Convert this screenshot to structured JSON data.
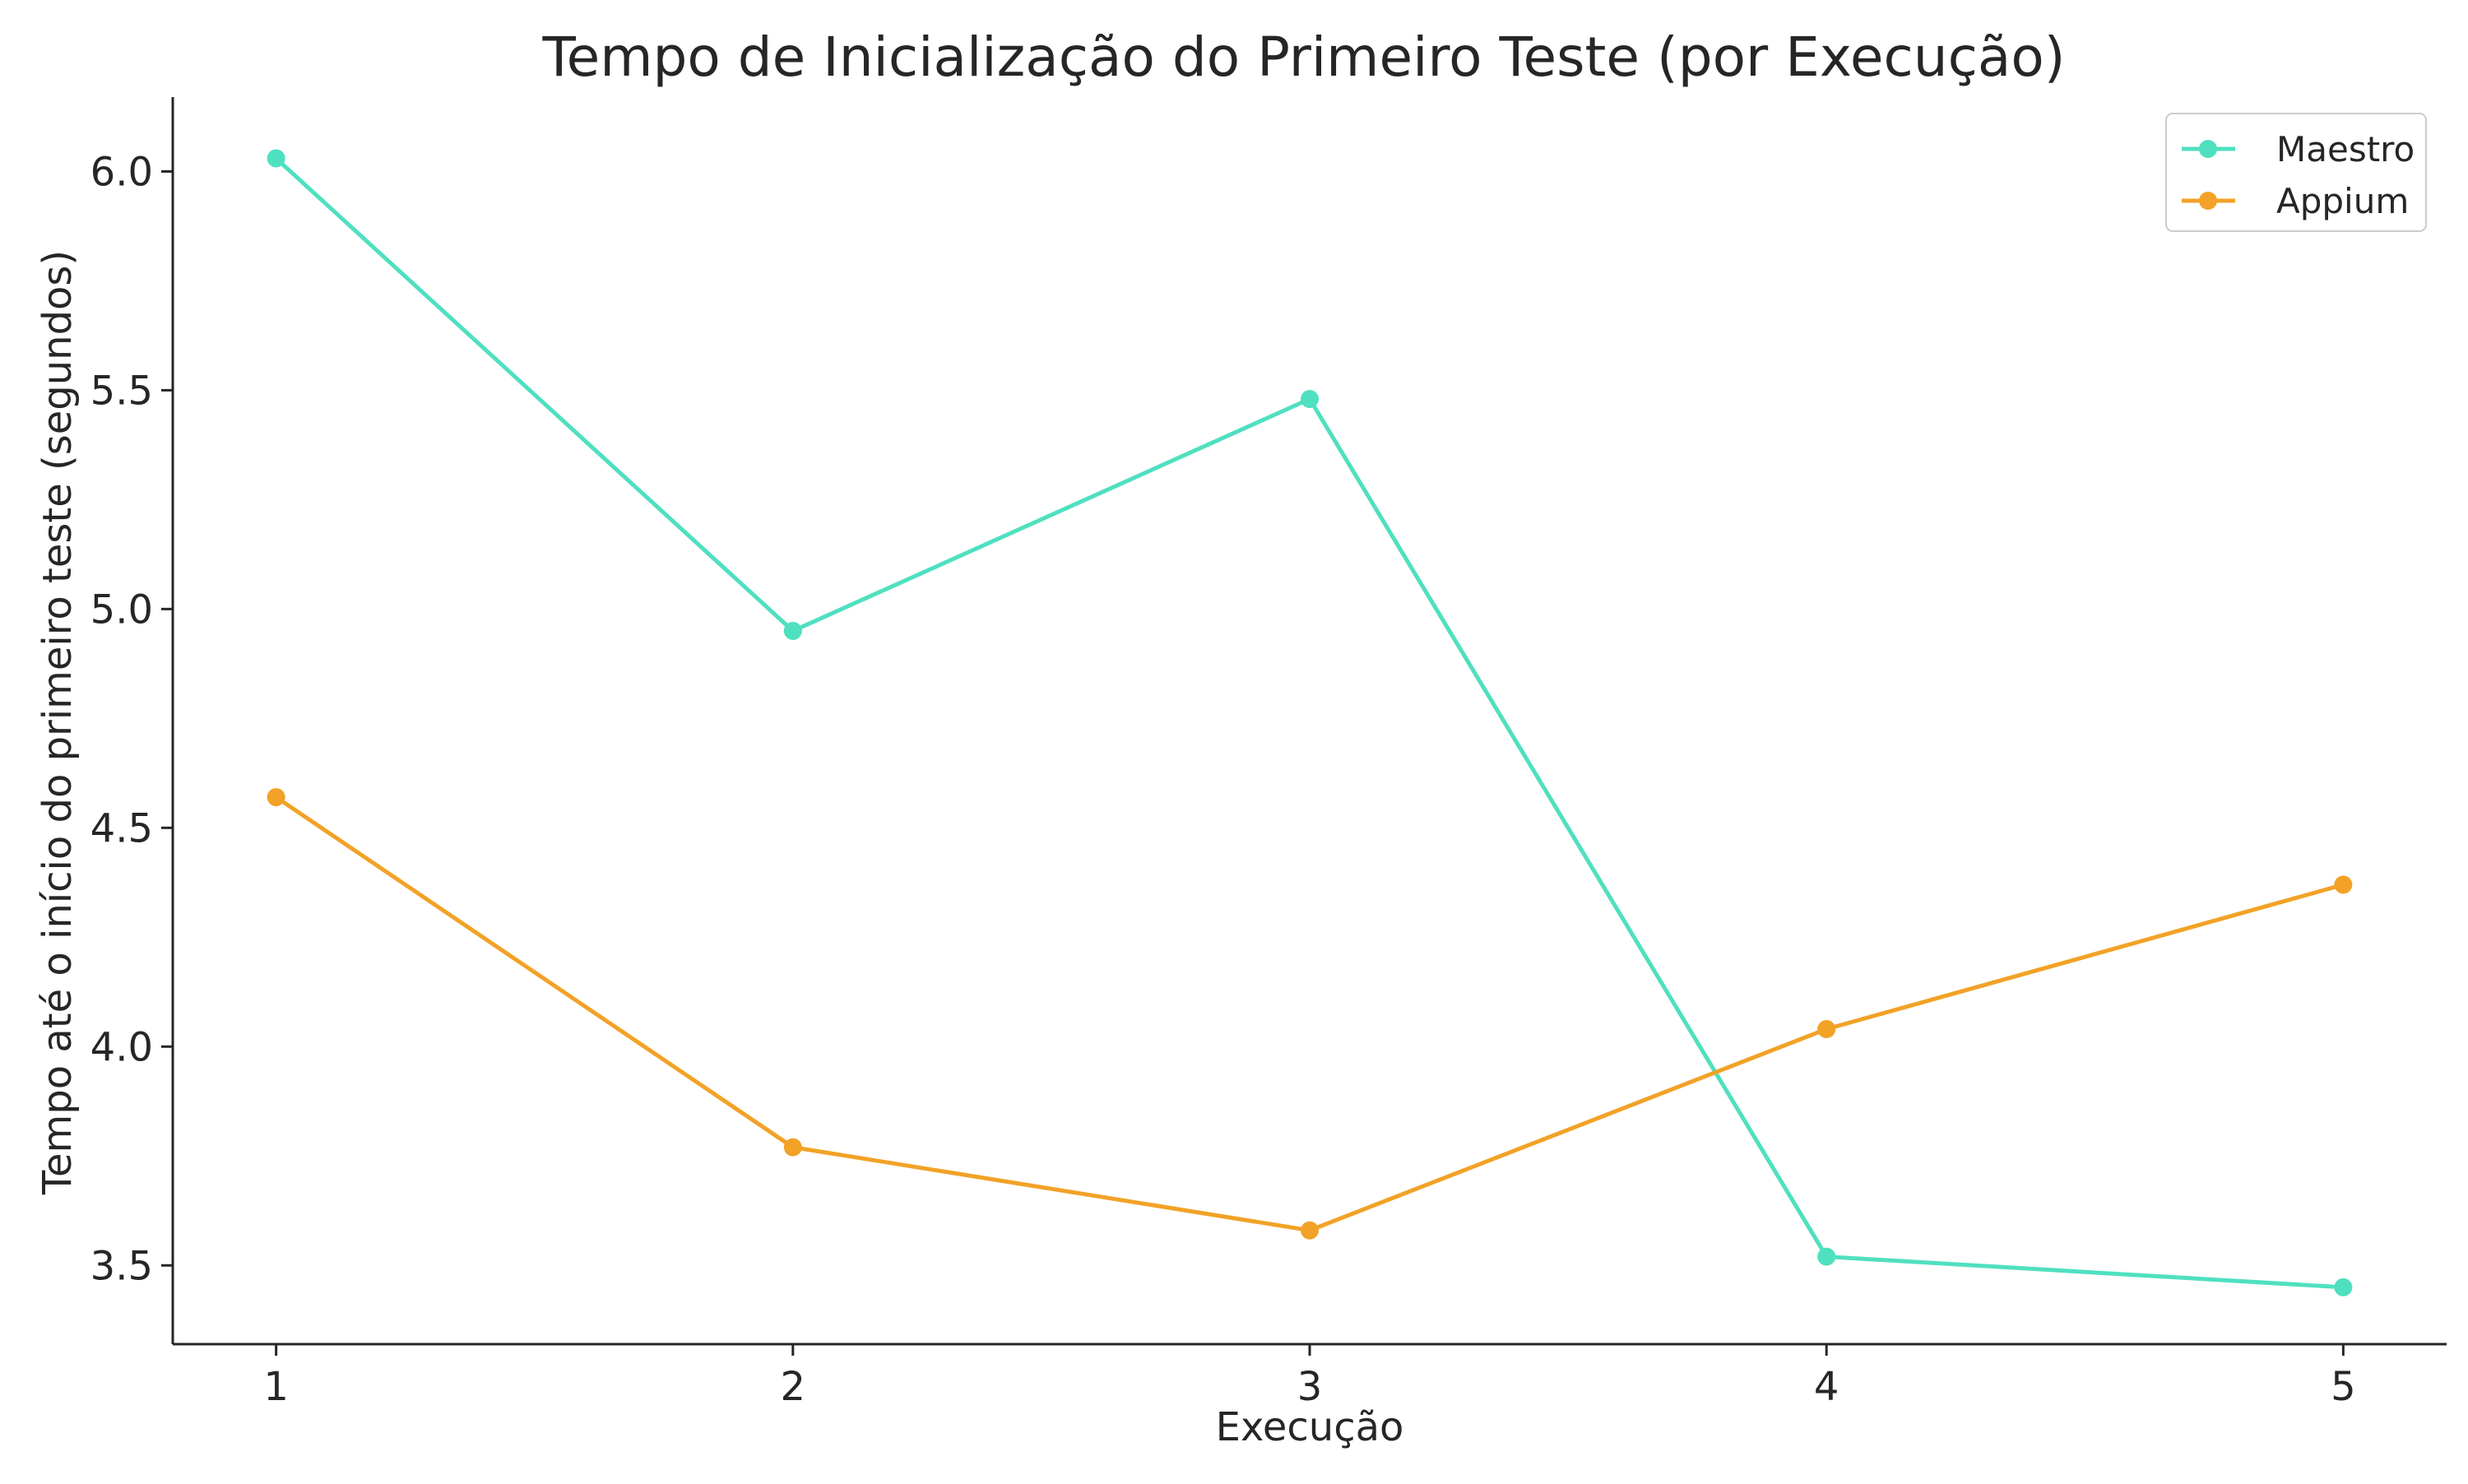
{
  "chart_data": {
    "type": "line",
    "title": "Tempo de Inicialização do Primeiro Teste (por Execução)",
    "xlabel": "Execução",
    "ylabel": "Tempo até o início do primeiro teste (segundos)",
    "x": [
      1,
      2,
      3,
      4,
      5
    ],
    "x_tick_labels": [
      "1",
      "2",
      "3",
      "4",
      "5"
    ],
    "xlim": [
      0.8,
      5.2
    ],
    "ylim": [
      3.32,
      6.17
    ],
    "y_ticks": [
      3.5,
      4.0,
      4.5,
      5.0,
      5.5,
      6.0
    ],
    "y_tick_labels": [
      "3.5",
      "4.0",
      "4.5",
      "5.0",
      "5.5",
      "6.0"
    ],
    "grid": false,
    "legend_position": "top-right",
    "series": [
      {
        "name": "Maestro",
        "color": "#4fe0c0",
        "marker": "circle",
        "values": [
          6.03,
          4.95,
          5.48,
          3.52,
          3.45
        ]
      },
      {
        "name": "Appium",
        "color": "#f2a227",
        "marker": "circle",
        "values": [
          4.57,
          3.77,
          3.58,
          4.04,
          4.37
        ]
      }
    ]
  }
}
